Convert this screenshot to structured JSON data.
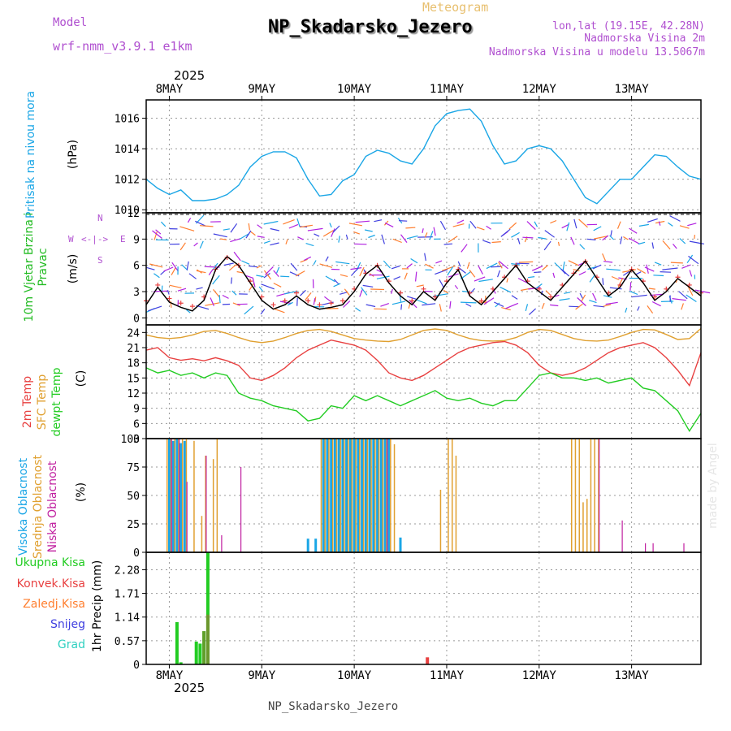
{
  "header": {
    "model_label": "Model",
    "model_name": "wrf-nmm_v3.9.1 e1km",
    "meteogram_label": "Meteogram",
    "station_title": "NP_Skadarsko_Jezero",
    "lonlat": "lon,lat (19.15E, 42.28N)",
    "altitude": "Nadmorska Visina 2m",
    "model_altitude": "Nadmorska Visina u modelu 13.5067m"
  },
  "footer": {
    "station_caption": "NP_Skadarsko_Jezero",
    "watermark": "made by Angel"
  },
  "colors": {
    "pressure": "#1aa6e6",
    "wind_label": "#22bb22",
    "temp2m": "#e84040",
    "sfc_temp": "#e0a030",
    "dewpt": "#22cc22",
    "visoka": "#1aa6e6",
    "srednja": "#e0a030",
    "niska": "#c020a0",
    "compass": "#b050d0",
    "ukupna": "#22cc22",
    "konvek": "#e84040",
    "zaledj": "#ff7f30",
    "snijeg": "#4040e0",
    "grad": "#30d0c0"
  },
  "x_axis": {
    "top_year": "2025",
    "bottom_year": "2025",
    "day_labels": [
      "8MAY",
      "9MAY",
      "10MAY",
      "11MAY",
      "12MAY",
      "13MAY"
    ],
    "start_hour": -6,
    "end_hour": 138
  },
  "compass": {
    "n": "N",
    "s": "S",
    "e": "E",
    "w": "W",
    "glyph": "<-|->"
  },
  "chart_data": [
    {
      "id": "pressure",
      "type": "line",
      "ylabel": "Pritisak na nivou mora",
      "unit": "(hPa)",
      "ylim": [
        1009.8,
        1017.2
      ],
      "yticks": [
        "1010",
        "1012",
        "1014",
        "1016"
      ],
      "series": [
        {
          "name": "Pritisak na nivou mora",
          "x": [
            -6,
            -3,
            0,
            3,
            6,
            9,
            12,
            15,
            18,
            21,
            24,
            27,
            30,
            33,
            36,
            39,
            42,
            45,
            48,
            51,
            54,
            57,
            60,
            63,
            66,
            69,
            72,
            75,
            78,
            81,
            84,
            87,
            90,
            93,
            96,
            99,
            102,
            105,
            108,
            111,
            114,
            117,
            120,
            123,
            126,
            129,
            132,
            135,
            138
          ],
          "y": [
            1012.0,
            1011.4,
            1011.0,
            1011.3,
            1010.6,
            1010.6,
            1010.7,
            1011.0,
            1011.6,
            1012.8,
            1013.5,
            1013.8,
            1013.8,
            1013.4,
            1012.0,
            1010.9,
            1011.0,
            1011.9,
            1012.3,
            1013.5,
            1013.9,
            1013.7,
            1013.2,
            1013.0,
            1014.0,
            1015.5,
            1016.3,
            1016.5,
            1016.6,
            1015.8,
            1014.2,
            1013.0,
            1013.2,
            1014.0,
            1014.2,
            1014.0,
            1013.2,
            1012.0,
            1010.8,
            1010.4,
            1011.2,
            1012.0,
            1012.0,
            1012.8,
            1013.6,
            1013.5,
            1012.8,
            1012.2,
            1012.0
          ]
        }
      ]
    },
    {
      "id": "wind",
      "type": "line",
      "ylabel": "10m Vjetar Brzina i Pravac",
      "unit": "(m/s)",
      "ylim": [
        -0.8,
        12
      ],
      "yticks": [
        "0",
        "3",
        "6",
        "9",
        "12"
      ],
      "series": [
        {
          "name": "Brzina",
          "x": [
            -6,
            -3,
            0,
            3,
            6,
            9,
            12,
            15,
            18,
            21,
            24,
            27,
            30,
            33,
            36,
            39,
            42,
            45,
            48,
            51,
            54,
            57,
            60,
            63,
            66,
            69,
            72,
            75,
            78,
            81,
            84,
            87,
            90,
            93,
            96,
            99,
            102,
            105,
            108,
            111,
            114,
            117,
            120,
            123,
            126,
            129,
            132,
            135,
            138
          ],
          "y": [
            1.5,
            3.5,
            1.8,
            1.2,
            0.8,
            2.0,
            5.5,
            7.0,
            6.0,
            4.0,
            2.0,
            1.0,
            1.5,
            2.5,
            1.5,
            1.0,
            1.2,
            1.5,
            3.0,
            5.0,
            6.0,
            4.0,
            2.5,
            1.5,
            3.0,
            2.0,
            4.0,
            5.5,
            2.5,
            1.5,
            3.0,
            4.5,
            6.0,
            4.0,
            3.0,
            2.0,
            3.5,
            5.0,
            6.5,
            4.5,
            2.5,
            3.5,
            5.5,
            4.0,
            2.0,
            3.0,
            4.5,
            3.5,
            2.5
          ]
        }
      ]
    },
    {
      "id": "temperature",
      "type": "line",
      "ylabel": "2m Temp SFC Temp dewpt Temp",
      "unit": "(C)",
      "ylim": [
        3,
        25.5
      ],
      "yticks": [
        "3",
        "6",
        "9",
        "12",
        "15",
        "18",
        "21",
        "24"
      ],
      "series": [
        {
          "name": "2m Temp",
          "x": [
            -6,
            -3,
            0,
            3,
            6,
            9,
            12,
            15,
            18,
            21,
            24,
            27,
            30,
            33,
            36,
            39,
            42,
            45,
            48,
            51,
            54,
            57,
            60,
            63,
            66,
            69,
            72,
            75,
            78,
            81,
            84,
            87,
            90,
            93,
            96,
            99,
            102,
            105,
            108,
            111,
            114,
            117,
            120,
            123,
            126,
            129,
            132,
            135,
            138
          ],
          "y": [
            20.5,
            21.0,
            19.0,
            18.5,
            18.8,
            18.4,
            19.0,
            18.4,
            17.5,
            15.0,
            14.5,
            15.5,
            17.0,
            19.0,
            20.5,
            21.5,
            22.5,
            22.0,
            21.5,
            20.5,
            18.5,
            16.0,
            15.0,
            14.5,
            15.5,
            17.0,
            18.5,
            20.0,
            21.0,
            21.5,
            22.0,
            22.2,
            21.5,
            20.0,
            17.5,
            16.0,
            15.5,
            16.0,
            17.0,
            18.5,
            20.0,
            21.0,
            21.5,
            22.0,
            21.0,
            19.0,
            16.5,
            13.5,
            20.0
          ]
        },
        {
          "name": "SFC Temp",
          "x": [
            -6,
            -3,
            0,
            3,
            6,
            9,
            12,
            15,
            18,
            21,
            24,
            27,
            30,
            33,
            36,
            39,
            42,
            45,
            48,
            51,
            54,
            57,
            60,
            63,
            66,
            69,
            72,
            75,
            78,
            81,
            84,
            87,
            90,
            93,
            96,
            99,
            102,
            105,
            108,
            111,
            114,
            117,
            120,
            123,
            126,
            129,
            132,
            135,
            138
          ],
          "y": [
            23.5,
            23.0,
            22.8,
            23.0,
            23.5,
            24.2,
            24.4,
            23.8,
            23.0,
            22.3,
            22.0,
            22.3,
            23.0,
            23.8,
            24.4,
            24.6,
            24.2,
            23.5,
            22.8,
            22.5,
            22.3,
            22.2,
            22.6,
            23.5,
            24.4,
            24.7,
            24.4,
            23.5,
            22.8,
            22.4,
            22.3,
            22.4,
            23.0,
            24.0,
            24.6,
            24.4,
            23.6,
            22.8,
            22.4,
            22.3,
            22.5,
            23.2,
            24.0,
            24.6,
            24.5,
            23.6,
            22.6,
            22.8,
            24.8
          ]
        },
        {
          "name": "dewpt Temp",
          "x": [
            -6,
            -3,
            0,
            3,
            6,
            9,
            12,
            15,
            18,
            21,
            24,
            27,
            30,
            33,
            36,
            39,
            42,
            45,
            48,
            51,
            54,
            57,
            60,
            63,
            66,
            69,
            72,
            75,
            78,
            81,
            84,
            87,
            90,
            93,
            96,
            99,
            102,
            105,
            108,
            111,
            114,
            117,
            120,
            123,
            126,
            129,
            132,
            135,
            138
          ],
          "y": [
            17.0,
            16.0,
            16.5,
            15.5,
            16.0,
            15.0,
            16.0,
            15.5,
            12.0,
            11.0,
            10.5,
            9.5,
            9.0,
            8.5,
            6.5,
            7.0,
            9.5,
            9.0,
            11.5,
            10.5,
            11.5,
            10.5,
            9.5,
            10.5,
            11.5,
            12.5,
            11.0,
            10.5,
            11.0,
            10.0,
            9.5,
            10.5,
            10.5,
            13.0,
            15.5,
            16.0,
            15.0,
            15.0,
            14.5,
            15.0,
            14.0,
            14.5,
            15.0,
            13.0,
            12.5,
            10.5,
            8.5,
            4.5,
            8.0
          ]
        }
      ]
    },
    {
      "id": "cloud",
      "type": "bar",
      "ylabel": "Visoka Oblacnost Srednja Oblacnost Niska Oblacnost",
      "unit": "(%)",
      "ylim": [
        0,
        100
      ],
      "yticks": [
        "0",
        "25",
        "50",
        "75",
        "100"
      ],
      "series": [
        {
          "name": "Visoka Oblacnost",
          "x": [
            0,
            1,
            2,
            3,
            4,
            36,
            38,
            40,
            41,
            42,
            43,
            44,
            45,
            46,
            47,
            48,
            49,
            50,
            51,
            52,
            53,
            54,
            55,
            56,
            57,
            60
          ],
          "y": [
            100,
            98,
            100,
            96,
            98,
            12,
            12,
            100,
            100,
            100,
            100,
            100,
            100,
            100,
            100,
            100,
            100,
            100,
            100,
            100,
            100,
            100,
            100,
            100,
            100,
            13
          ]
        },
        {
          "name": "Srednja Oblacnost",
          "x": [
            -1,
            0,
            1,
            2,
            3,
            4,
            6,
            8,
            9,
            11,
            12,
            39,
            40,
            41,
            42,
            43,
            44,
            45,
            46,
            47,
            48,
            49,
            50,
            51,
            52,
            53,
            54,
            55,
            56,
            57,
            58,
            70,
            72,
            73,
            74,
            104,
            105,
            106,
            107,
            108,
            109,
            110,
            111
          ],
          "y": [
            100,
            100,
            100,
            100,
            100,
            100,
            98,
            32,
            85,
            82,
            100,
            100,
            100,
            100,
            100,
            100,
            100,
            100,
            100,
            100,
            100,
            100,
            100,
            100,
            100,
            100,
            100,
            100,
            100,
            100,
            95,
            55,
            100,
            100,
            85,
            100,
            100,
            100,
            44,
            47,
            100,
            100,
            100
          ]
        },
        {
          "name": "Niska Oblacnost",
          "x": [
            1,
            3,
            5,
            10,
            14,
            19,
            57,
            112,
            118,
            124,
            126,
            134
          ],
          "y": [
            100,
            100,
            62,
            85,
            15,
            75,
            100,
            100,
            28,
            8,
            8,
            8
          ]
        }
      ]
    },
    {
      "id": "precip",
      "type": "bar",
      "ylabel": "1hr Precip",
      "unit": "(mm)",
      "ylim": [
        0,
        2.7
      ],
      "yticks": [
        "0",
        "0.57",
        "1.14",
        "1.71",
        "2.28"
      ],
      "legend": [
        "Ukupna Kisa",
        "Konvek.Kisa",
        "Zaledj.Kisa",
        "Snijeg",
        "Grad"
      ],
      "series": [
        {
          "name": "Ukupna Kisa",
          "x": [
            2,
            3,
            7,
            8,
            9,
            10
          ],
          "y": [
            1.02,
            0.05,
            0.55,
            0.5,
            0.8,
            2.7
          ]
        },
        {
          "name": "Konvek.Kisa",
          "x": [
            67
          ],
          "y": [
            0.17
          ]
        }
      ]
    }
  ]
}
